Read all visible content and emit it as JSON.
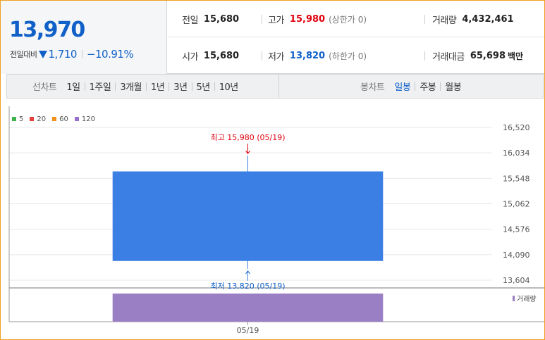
{
  "quote": {
    "price": "13,970",
    "change_label": "전일대비",
    "change_value": "1,710",
    "change_rate": "−10.91%",
    "rows": [
      [
        {
          "label": "전일",
          "value": "15,680",
          "sub": ""
        },
        {
          "label": "고가",
          "value": "15,980",
          "sub": "(상한가 0)",
          "color": "#e1000f"
        },
        {
          "label": "거래량",
          "value": "4,432,461",
          "sub": ""
        }
      ],
      [
        {
          "label": "시가",
          "value": "15,680",
          "sub": ""
        },
        {
          "label": "저가",
          "value": "13,820",
          "sub": "(하한가 0)",
          "color": "#1060c8"
        },
        {
          "label": "거래대금",
          "value": "65,698",
          "sub": "백만"
        }
      ]
    ]
  },
  "toolbar": {
    "line_title": "선차트",
    "line_periods": [
      "1일",
      "1주일",
      "3개월",
      "1년",
      "3년",
      "5년",
      "10년"
    ],
    "candle_title": "봉차트",
    "candle_periods": [
      "일봉",
      "주봉",
      "월봉"
    ],
    "active_candle": "일봉"
  },
  "legend": [
    {
      "label": "5",
      "color": "#3cb44b"
    },
    {
      "label": "20",
      "color": "#e6403a"
    },
    {
      "label": "60",
      "color": "#f39019"
    },
    {
      "label": "120",
      "color": "#9b6fce"
    }
  ],
  "chart_data": {
    "type": "candlestick",
    "x": [
      "05/19"
    ],
    "candles": [
      {
        "date": "05/19",
        "open": 15680,
        "high": 15980,
        "low": 13820,
        "close": 13970,
        "volume": 4432461
      }
    ],
    "ylim": [
      13604,
      16520
    ],
    "yticks": [
      "16,520",
      "16,034",
      "15,548",
      "15,062",
      "14,576",
      "14,090",
      "13,604"
    ],
    "xticks": [
      "05/19"
    ],
    "annotations": {
      "high": "최고 15,980 (05/19)",
      "low": "최저 13,820 (05/19)"
    },
    "volume_legend": "거래량",
    "colors": {
      "candle": "#3b7fe4",
      "volume": "#9b7fc4",
      "grid": "#e8e8e8"
    }
  }
}
